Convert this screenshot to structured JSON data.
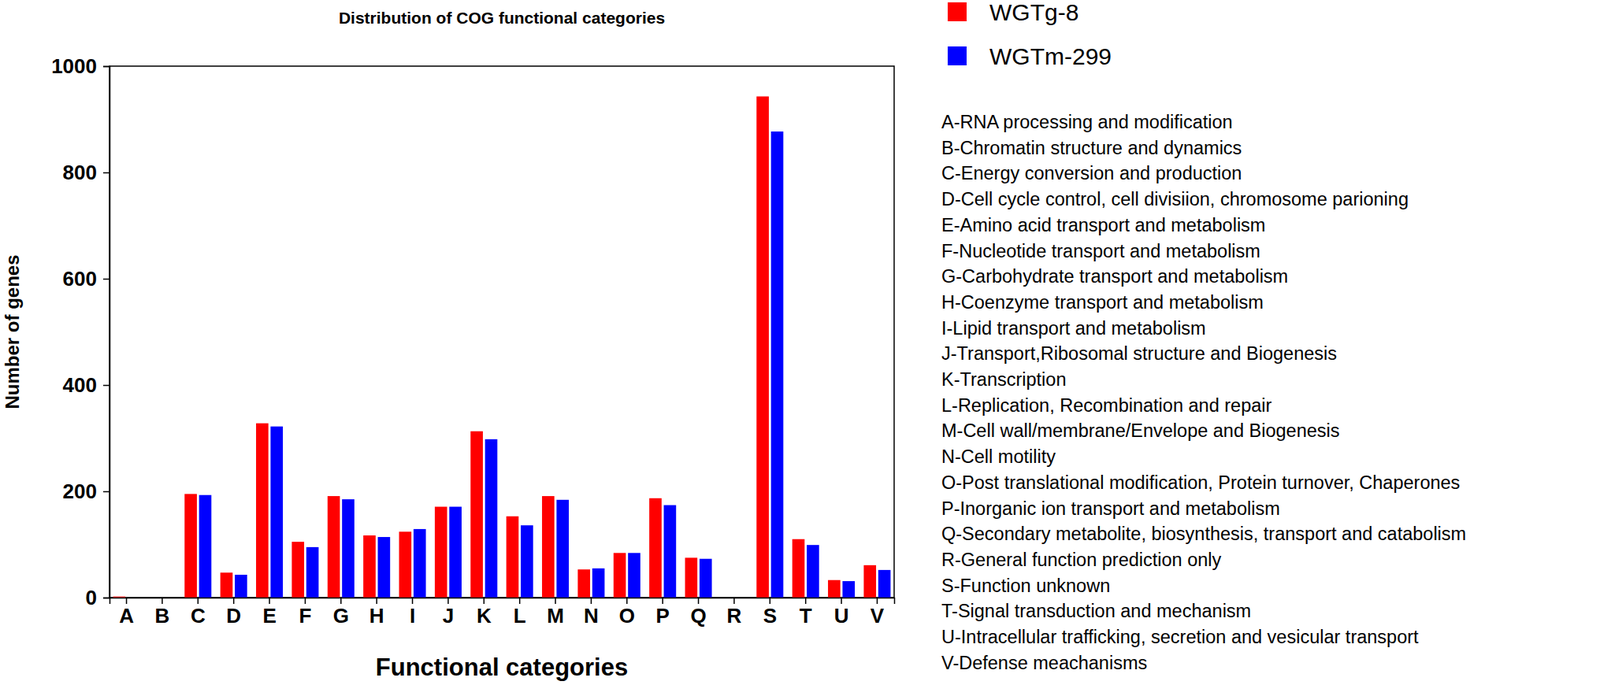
{
  "chart_data": {
    "type": "bar",
    "title": "Distribution of COG functional categories",
    "x_label": "Functional categories",
    "y_label": "Number of genes",
    "categories": [
      "A",
      "B",
      "C",
      "D",
      "E",
      "F",
      "G",
      "H",
      "I",
      "J",
      "K",
      "L",
      "M",
      "N",
      "O",
      "P",
      "Q",
      "R",
      "S",
      "T",
      "U",
      "V"
    ],
    "series": [
      {
        "name": "WGTg-8",
        "color": "#ff0000",
        "values": [
          2,
          0,
          195,
          47,
          328,
          105,
          191,
          117,
          124,
          171,
          313,
          153,
          191,
          53,
          84,
          187,
          75,
          0,
          943,
          110,
          33,
          61
        ]
      },
      {
        "name": "WGTm-299",
        "color": "#0000ff",
        "values": [
          0,
          0,
          193,
          43,
          322,
          95,
          185,
          114,
          129,
          171,
          298,
          136,
          184,
          55,
          84,
          174,
          73,
          0,
          877,
          99,
          31,
          52
        ]
      }
    ],
    "ylim": [
      0,
      1000
    ],
    "yticks": [
      0,
      200,
      400,
      600,
      800,
      1000
    ],
    "grid": false,
    "legend": "upper right",
    "annotations": [
      "A-RNA processing and modification",
      "B-Chromatin structure and dynamics",
      "C-Energy conversion and production",
      "D-Cell cycle control, cell divisiion, chromosome parioning",
      "E-Amino acid transport and metabolism",
      "F-Nucleotide transport and metabolism",
      "G-Carbohydrate transport and metabolism",
      "H-Coenzyme transport and metabolism",
      "I-Lipid transport and metabolism",
      "J-Transport,Ribosomal structure and Biogenesis",
      "K-Transcription",
      "L-Replication, Recombination and repair",
      "M-Cell wall/membrane/Envelope and Biogenesis",
      "N-Cell motility",
      "O-Post translational modification, Protein turnover, Chaperones",
      "P-Inorganic ion transport and metabolism",
      "Q-Secondary metabolite, biosynthesis, transport and catabolism",
      "R-General function prediction only",
      "S-Function unknown",
      "T-Signal transduction and mechanism",
      "U-Intracellular trafficking, secretion and vesicular transport",
      "V-Defense meachanisms"
    ]
  }
}
